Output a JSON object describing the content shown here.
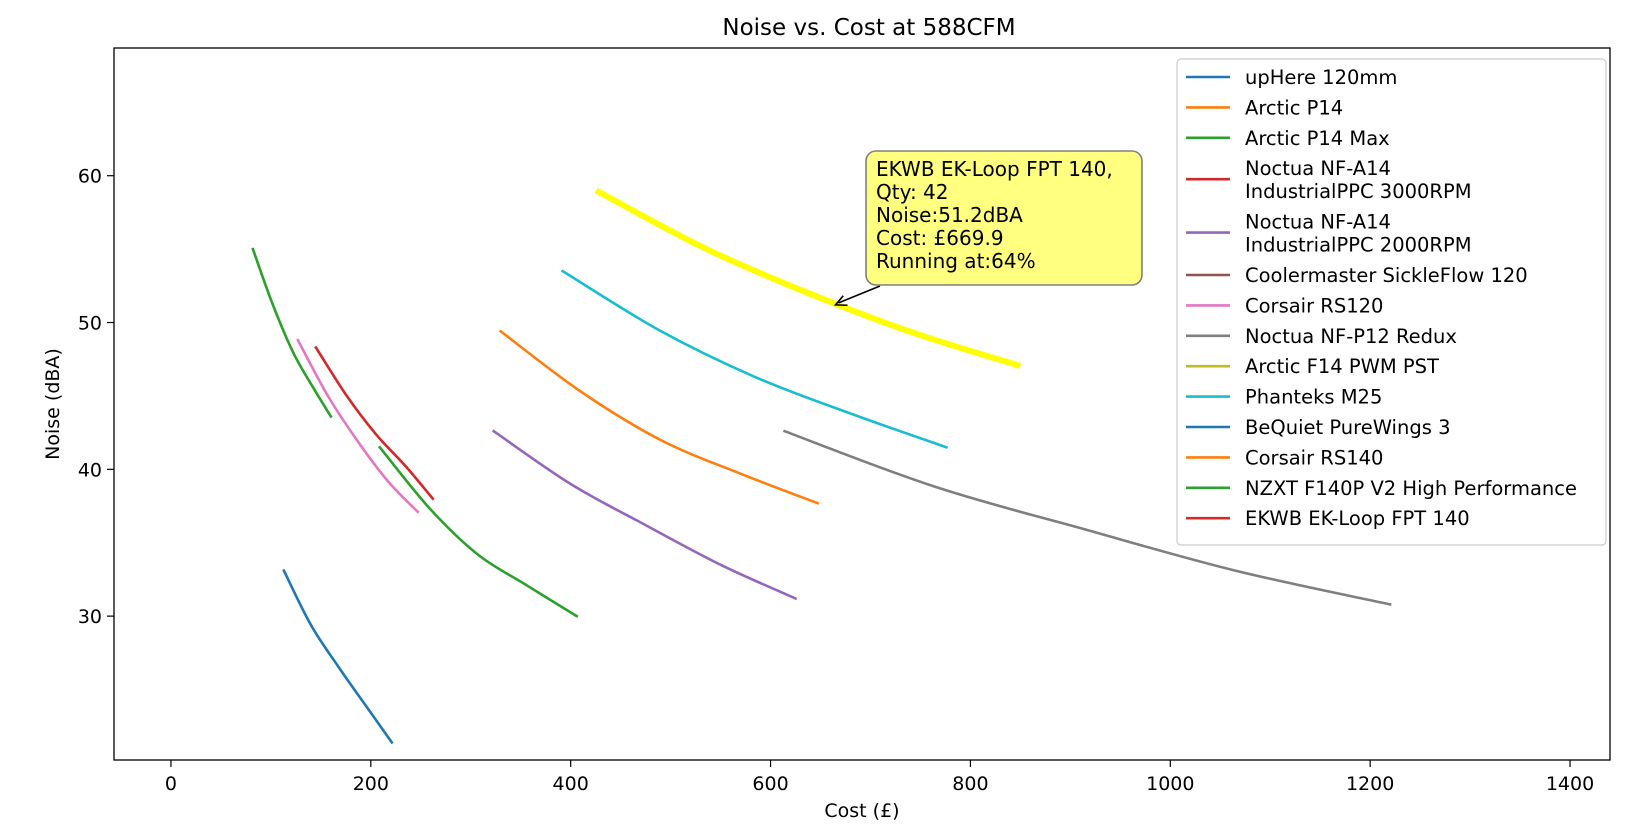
{
  "chart_data": {
    "type": "line",
    "title": "Noise vs. Cost at 588CFM",
    "xlabel": "Cost (£)",
    "ylabel": "Noise (dBA)",
    "xlim": [
      -57,
      1440
    ],
    "ylim": [
      20.2,
      68.7
    ],
    "xticks": [
      0,
      200,
      400,
      600,
      800,
      1000,
      1200,
      1400
    ],
    "yticks": [
      30,
      40,
      50,
      60
    ],
    "grid": false,
    "legend_position": "top-right",
    "series": [
      {
        "name": "upHere 120mm",
        "color": "#1f77b4",
        "x": [
          113,
          140,
          167,
          194,
          221
        ],
        "y": [
          33.1,
          29.4,
          26.6,
          24.0,
          21.4
        ]
      },
      {
        "name": "Arctic P14",
        "color": "#ff7f0e",
        "x": [
          330,
          410,
          490,
          570,
          647
        ],
        "y": [
          49.4,
          45.3,
          42.0,
          39.7,
          37.7
        ]
      },
      {
        "name": "Arctic P14 Max",
        "color": "#2ca02c",
        "x": [
          82,
          102,
          122,
          142,
          160
        ],
        "y": [
          55.0,
          51.2,
          48.0,
          45.6,
          43.6
        ]
      },
      {
        "name": "Noctua NF-A14\nIndustrialPPC 3000RPM",
        "color": "#d62728",
        "x": [
          145,
          175,
          205,
          235,
          262
        ],
        "y": [
          48.3,
          45.1,
          42.4,
          40.2,
          38.0
        ]
      },
      {
        "name": "Noctua NF-A14\nIndustrialPPC 2000RPM",
        "color": "#9467bd",
        "x": [
          323,
          400,
          475,
          550,
          625
        ],
        "y": [
          42.6,
          39.0,
          36.2,
          33.5,
          31.2
        ]
      },
      {
        "name": "Coolermaster SickleFlow 120",
        "color": "#8c564b",
        "x": [],
        "y": []
      },
      {
        "name": "Corsair RS120",
        "color": "#e377c2",
        "x": [
          127,
          157,
          187,
          217,
          247
        ],
        "y": [
          48.8,
          45.0,
          41.9,
          39.2,
          37.1
        ]
      },
      {
        "name": "Noctua NF-P12 Redux",
        "color": "#7f7f7f",
        "x": [
          614,
          765,
          915,
          1065,
          1220
        ],
        "y": [
          42.6,
          38.8,
          35.9,
          33.1,
          30.8
        ]
      },
      {
        "name": "Arctic F14 PWM PST",
        "color": "#bcbd22",
        "x": [],
        "y": []
      },
      {
        "name": "Phanteks M25",
        "color": "#17becf",
        "x": [
          392,
          488,
          584,
          680,
          776
        ],
        "y": [
          53.5,
          49.5,
          46.3,
          43.8,
          41.5
        ]
      },
      {
        "name": "BeQuiet PureWings 3",
        "color": "#1f77b4",
        "x": [],
        "y": []
      },
      {
        "name": "Corsair RS140",
        "color": "#ff7f0e",
        "x": [],
        "y": []
      },
      {
        "name": "NZXT F140P V2 High Performance",
        "color": "#2ca02c",
        "x": [
          209,
          258,
          307,
          356,
          406
        ],
        "y": [
          41.5,
          37.4,
          34.2,
          32.1,
          30.0
        ]
      },
      {
        "name": "EKWB EK-Loop FPT 140",
        "color": "#d62728",
        "x": [],
        "y": []
      }
    ],
    "highlight": {
      "color": "#ffff00",
      "x": [
        428,
        533,
        638,
        743,
        847
      ],
      "y": [
        58.9,
        55.1,
        52.0,
        49.3,
        47.1
      ]
    },
    "annotation": {
      "lines": [
        "EKWB EK-Loop FPT 140,",
        "Qty: 42",
        "Noise:51.2dBA",
        "Cost: £669.9",
        "Running at:64%"
      ],
      "point": [
        665,
        51.2
      ],
      "box_fill": "#ffff80",
      "box_edge": "#808080"
    }
  }
}
